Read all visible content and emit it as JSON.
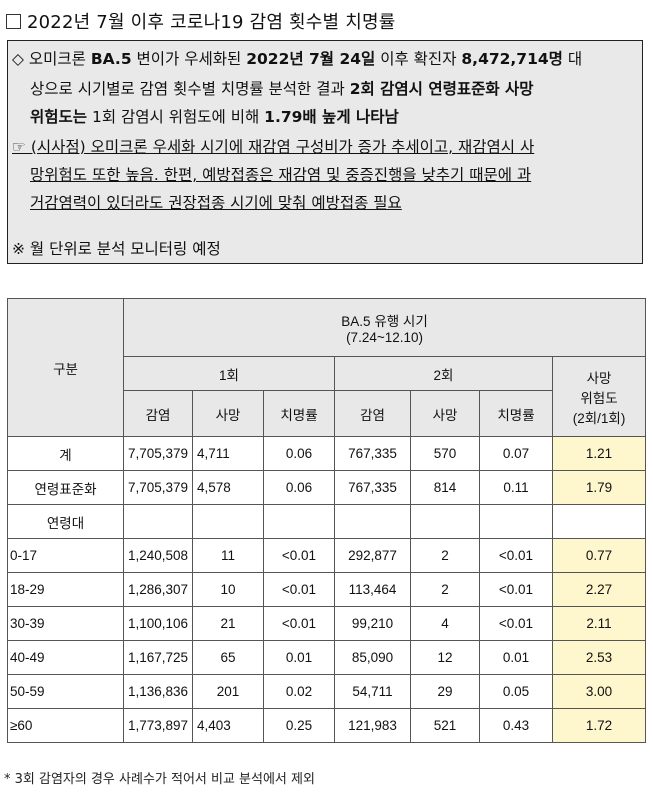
{
  "title": "2022년 7월 이후 코로나19 감염 횟수별 치명률",
  "summary": {
    "line1_a": "◇ 오미크론 ",
    "line1_b": "BA.5",
    "line1_c": " 변이가 우세화된 ",
    "line1_d": "2022년 7월 24일",
    "line1_e": " 이후 확진자 ",
    "line1_f": "8,472,714명",
    "line1_g": " 대",
    "line2_a": "상으로 시기별로 감염 횟수별 치명률 분석한 결과 ",
    "line2_b": "2회 감염시 연령표준화 사망",
    "line3_a": "위험도는",
    "line3_b": " 1회 감염시 위험도에 비해 ",
    "line3_c": "1.79배 높게 나타남",
    "line4": "☞ (시사점) 오미크론 우세화 시기에 재감염 구성비가 증가 추세이고, 재감염시 사",
    "line5": "망위험도 또한 높음. 한편, 예방접종은 재감염 및 중증진행을 낮추기 때문에 과",
    "line6": "거감염력이 있더라도 권장접종 시기에 맞춰 예방접종 필요",
    "line7": "※ 월 단위로 분석 모니터링 예정"
  },
  "table": {
    "col_group": "구분",
    "period_line1": "BA.5 유행 시기",
    "period_line2": "(7.24~12.10)",
    "first": "1회",
    "second": "2회",
    "risk_line1": "사망",
    "risk_line2": "위험도",
    "risk_line3": "(2회/1회)",
    "sub": [
      "감염",
      "사망",
      "치명률",
      "감염",
      "사망",
      "치명률"
    ],
    "rows": [
      {
        "label": "계",
        "c1": "7,705,379",
        "d1": "4,711",
        "f1": "0.06",
        "c2": "767,335",
        "d2": "570",
        "f2": "0.07",
        "r": "1.21"
      },
      {
        "label": "연령표준화",
        "c1": "7,705,379",
        "d1": "4,578",
        "f1": "0.06",
        "c2": "767,335",
        "d2": "814",
        "f2": "0.11",
        "r": "1.79"
      },
      {
        "label": "연령대",
        "c1": "",
        "d1": "",
        "f1": "",
        "c2": "",
        "d2": "",
        "f2": "",
        "r": ""
      },
      {
        "label": "0-17",
        "c1": "1,240,508",
        "d1": "11",
        "f1": "<0.01",
        "c2": "292,877",
        "d2": "2",
        "f2": "<0.01",
        "r": "0.77"
      },
      {
        "label": "18-29",
        "c1": "1,286,307",
        "d1": "10",
        "f1": "<0.01",
        "c2": "113,464",
        "d2": "2",
        "f2": "<0.01",
        "r": "2.27"
      },
      {
        "label": "30-39",
        "c1": "1,100,106",
        "d1": "21",
        "f1": "<0.01",
        "c2": "99,210",
        "d2": "4",
        "f2": "<0.01",
        "r": "2.11"
      },
      {
        "label": "40-49",
        "c1": "1,167,725",
        "d1": "65",
        "f1": "0.01",
        "c2": "85,090",
        "d2": "12",
        "f2": "0.01",
        "r": "2.53"
      },
      {
        "label": "50-59",
        "c1": "1,136,836",
        "d1": "201",
        "f1": "0.02",
        "c2": "54,711",
        "d2": "29",
        "f2": "0.05",
        "r": "3.00"
      },
      {
        "label": "≥60",
        "c1": "1,773,897",
        "d1": "4,403",
        "f1": "0.25",
        "c2": "121,983",
        "d2": "521",
        "f2": "0.43",
        "r": "1.72"
      }
    ]
  },
  "footnote": "* 3회 감염자의 경우 사례수가 적어서 비교 분석에서 제외",
  "colors": {
    "highlight": "#fef6cc",
    "header_bg": "#e8e8e8",
    "summary_bg": "#e9e9e9"
  }
}
